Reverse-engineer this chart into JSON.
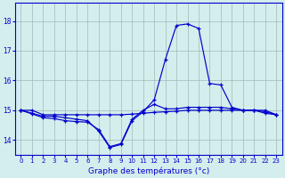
{
  "xlabel": "Graphe des températures (°c)",
  "bg_color": "#d4eeed",
  "line_color": "#0000cc",
  "grid_color": "#a0b8b8",
  "xlim": [
    -0.5,
    23.5
  ],
  "ylim": [
    13.5,
    18.6
  ],
  "yticks": [
    14,
    15,
    16,
    17,
    18
  ],
  "xticks": [
    0,
    1,
    2,
    3,
    4,
    5,
    6,
    7,
    8,
    9,
    10,
    11,
    12,
    13,
    14,
    15,
    16,
    17,
    18,
    19,
    20,
    21,
    22,
    23
  ],
  "s1": [
    15.0,
    14.9,
    14.8,
    14.8,
    14.75,
    14.7,
    14.65,
    14.3,
    13.75,
    13.85,
    14.65,
    14.95,
    15.35,
    16.7,
    17.85,
    17.9,
    17.75,
    15.9,
    15.85,
    15.1,
    15.0,
    15.0,
    14.9,
    14.85
  ],
  "s2": [
    15.0,
    15.0,
    14.85,
    14.85,
    14.85,
    14.85,
    14.85,
    14.85,
    14.85,
    14.85,
    14.87,
    14.9,
    14.93,
    14.95,
    14.97,
    15.0,
    15.0,
    15.0,
    15.0,
    15.0,
    15.0,
    15.0,
    15.0,
    14.85
  ],
  "s3": [
    15.0,
    14.88,
    14.75,
    14.72,
    14.65,
    14.62,
    14.6,
    14.35,
    13.78,
    13.88,
    14.7,
    15.0,
    15.2,
    15.05,
    15.05,
    15.1,
    15.1,
    15.1,
    15.1,
    15.05,
    15.0,
    15.0,
    14.95,
    14.85
  ]
}
